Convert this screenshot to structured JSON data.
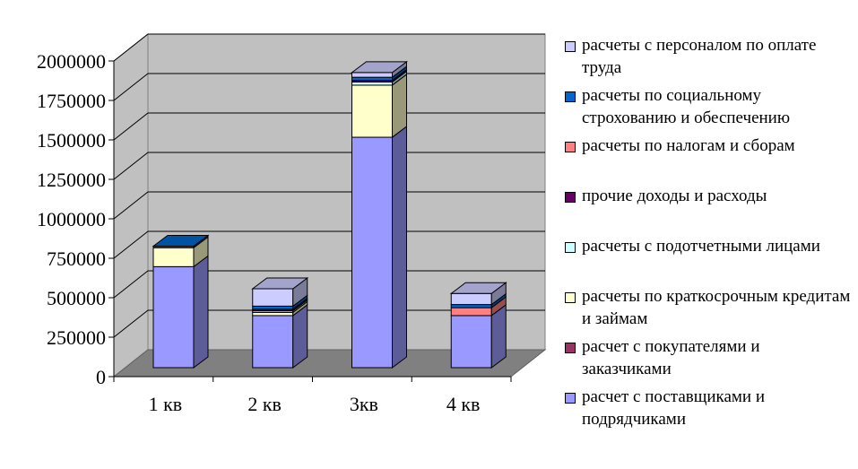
{
  "chart_data": {
    "type": "bar",
    "stacked": true,
    "three_d": true,
    "categories": [
      "1 кв",
      "2 кв",
      "3кв",
      "4 кв"
    ],
    "ylim": [
      0,
      2000000
    ],
    "yticks": [
      0,
      250000,
      500000,
      750000,
      1000000,
      1250000,
      1500000,
      1750000,
      2000000
    ],
    "ytick_labels": [
      "0",
      "250000",
      "500000",
      "750000",
      "1000000",
      "1250000",
      "1500000",
      "1750000",
      "2000000"
    ],
    "grid": true,
    "legend_position": "right",
    "series": [
      {
        "name": "расчет с поставщиками и подрядчиками",
        "color": "#9999ff",
        "values": [
          640000,
          330000,
          1460000,
          330000
        ]
      },
      {
        "name": "расчет  с покупателями и заказчиками",
        "color": "#993366",
        "values": [
          0,
          0,
          0,
          0
        ]
      },
      {
        "name": "расчеты по краткосрочным кредитам и займам",
        "color": "#ffffcc",
        "values": [
          120000,
          20000,
          330000,
          0
        ]
      },
      {
        "name": "расчеты с подотчетными лицами",
        "color": "#ccffff",
        "values": [
          0,
          10000,
          20000,
          0
        ]
      },
      {
        "name": "прочие доходы и расходы",
        "color": "#660066",
        "values": [
          0,
          10000,
          10000,
          0
        ]
      },
      {
        "name": "расчеты по налогам и сборам",
        "color": "#ff8080",
        "values": [
          0,
          0,
          0,
          50000
        ]
      },
      {
        "name": "расчеты по социальному строхованию и обеспечению",
        "color": "#0066cc",
        "values": [
          10000,
          20000,
          20000,
          20000
        ]
      },
      {
        "name": "расчеты с персоналом по оплате труда",
        "color": "#ccccff",
        "values": [
          0,
          110000,
          30000,
          70000
        ]
      }
    ]
  }
}
